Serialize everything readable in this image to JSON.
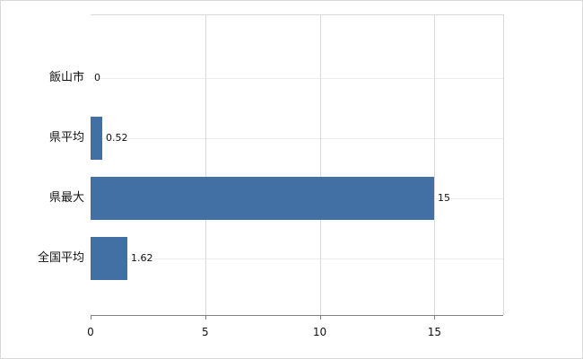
{
  "chart_data": {
    "type": "bar",
    "orientation": "horizontal",
    "title": "",
    "xlabel": "",
    "ylabel": "",
    "categories": [
      "飯山市",
      "県平均",
      "県最大",
      "全国平均"
    ],
    "values": [
      0,
      0.52,
      15,
      1.62
    ],
    "value_labels": [
      "0",
      "0.52",
      "15",
      "1.62"
    ],
    "xlim": [
      0,
      18
    ],
    "xticks": [
      0,
      5,
      10,
      15
    ],
    "grid": true,
    "legend": "none",
    "bar_color": "#4270a5",
    "gridline_color": "#d9d9d9",
    "row_guide_color": "#ececec",
    "axis_color": "#808080",
    "text_color": "#111111",
    "background_color": "#ffffff"
  }
}
